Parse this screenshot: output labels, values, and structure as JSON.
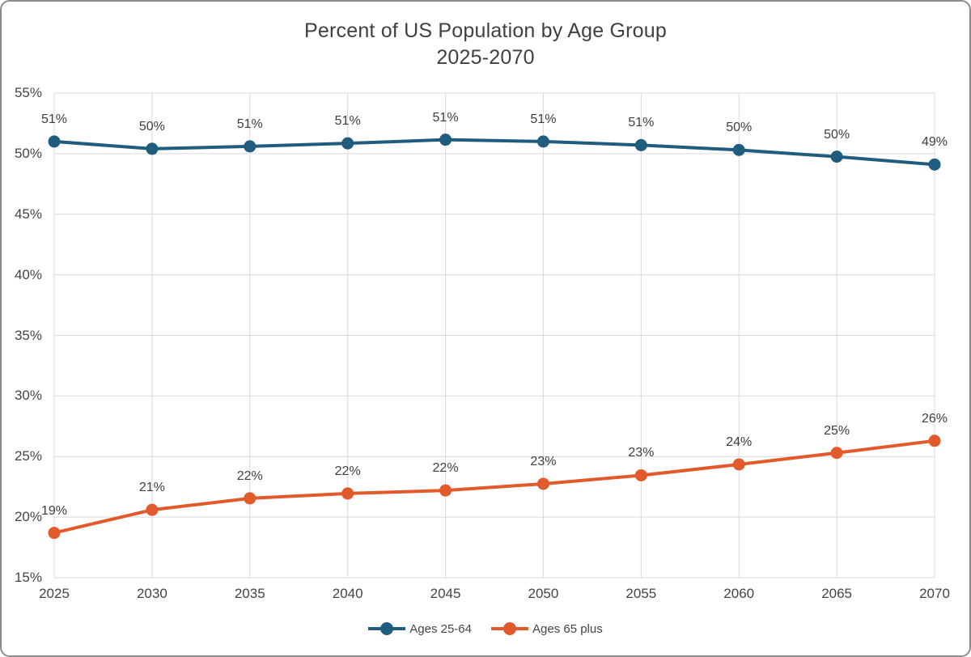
{
  "title": {
    "line1": "Percent of US Population by Age Group",
    "line2": "2025-2070"
  },
  "colors": {
    "background": "#ffffff",
    "frame_border": "#8c8c8c",
    "grid": "#d9d9d9",
    "axis_text": "#444444",
    "data_label_text": "#3d3d3d",
    "title_text": "#404040",
    "series_blue": "#1f5c7e",
    "series_orange": "#e2592b"
  },
  "chart_data": {
    "type": "line",
    "title": "Percent of US Population by Age Group 2025-2070",
    "xlabel": "",
    "ylabel": "",
    "x": [
      2025,
      2030,
      2035,
      2040,
      2045,
      2050,
      2055,
      2060,
      2065,
      2070
    ],
    "series": [
      {
        "name": "Ages 25-64",
        "color": "#1f5c7e",
        "values": [
          51.0,
          50.4,
          50.6,
          50.85,
          51.15,
          51.0,
          50.7,
          50.3,
          49.75,
          49.1
        ],
        "point_labels": [
          "51%",
          "50%",
          "51%",
          "51%",
          "51%",
          "51%",
          "51%",
          "50%",
          "50%",
          "49%"
        ]
      },
      {
        "name": "Ages 65 plus",
        "color": "#e2592b",
        "values": [
          18.7,
          20.6,
          21.55,
          21.95,
          22.2,
          22.75,
          23.45,
          24.35,
          25.3,
          26.3
        ],
        "point_labels": [
          "19%",
          "21%",
          "22%",
          "22%",
          "22%",
          "23%",
          "23%",
          "24%",
          "25%",
          "26%"
        ]
      }
    ],
    "ylim": [
      15,
      55
    ],
    "yticks": [
      {
        "value": 15,
        "label": "15%"
      },
      {
        "value": 20,
        "label": "20%"
      },
      {
        "value": 25,
        "label": "25%"
      },
      {
        "value": 30,
        "label": "30%"
      },
      {
        "value": 35,
        "label": "35%"
      },
      {
        "value": 40,
        "label": "40%"
      },
      {
        "value": 45,
        "label": "45%"
      },
      {
        "value": 50,
        "label": "50%"
      },
      {
        "value": 55,
        "label": "55%"
      }
    ],
    "grid": true,
    "legend_position": "bottom",
    "data_labels_position": "above"
  }
}
